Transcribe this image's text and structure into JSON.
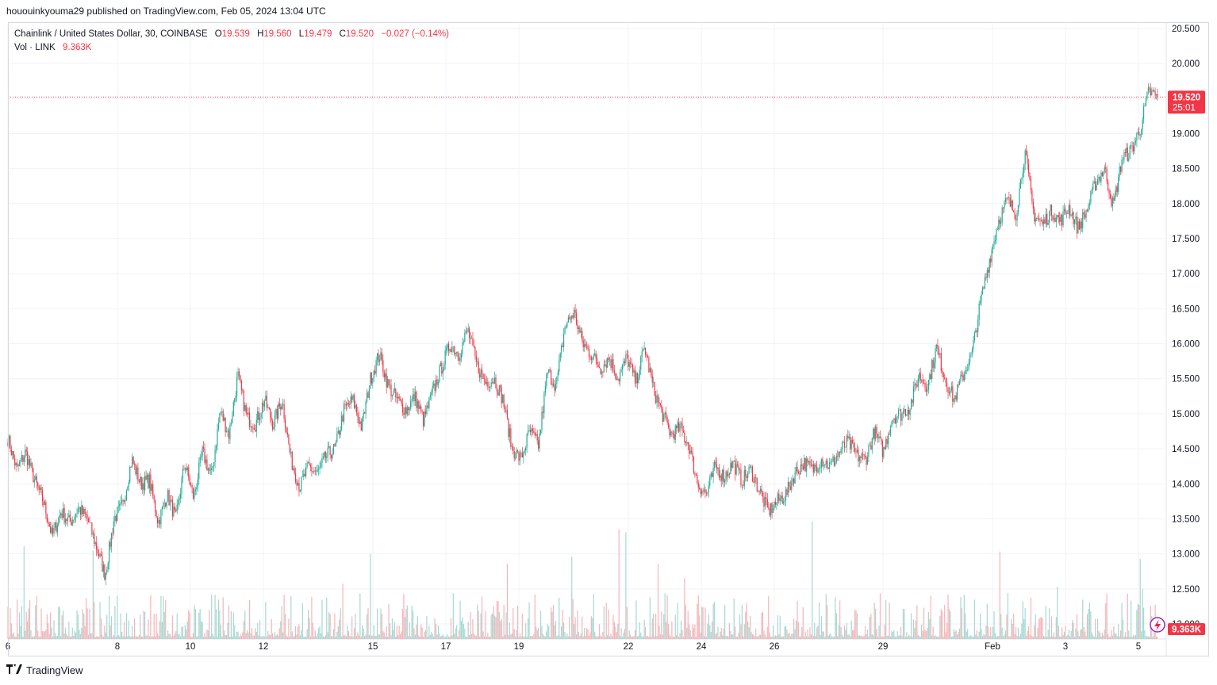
{
  "header": {
    "published": "hououinkyouma29 published on TradingView.com, Feb 05, 2024 13:04 UTC"
  },
  "legend": {
    "symbol": "Chainlink / United States Dollar, 30, COINBASE",
    "open_label": "O",
    "open": "19.539",
    "high_label": "H",
    "high": "19.560",
    "low_label": "L",
    "low": "19.479",
    "close_label": "C",
    "close": "19.520",
    "change": "−0.027 (−0.14%)",
    "vol_label": "Vol · LINK",
    "vol_value": "9.363K"
  },
  "footer": {
    "brand": "TradingView",
    "brand_icon": "tradingview-logo-icon"
  },
  "colors": {
    "up": "#22ab94",
    "down": "#f23645",
    "up_vol": "#a8d8d1",
    "down_vol": "#f7b4b8",
    "grid": "#f0f3fa",
    "axis_text": "#131722"
  },
  "chart_data": {
    "type": "candlestick",
    "interval": "30",
    "exchange": "COINBASE",
    "pair": "LINK/USD",
    "y_axis": {
      "ticks": [
        "20.500",
        "20.000",
        "19.500",
        "19.000",
        "18.500",
        "18.000",
        "17.500",
        "17.000",
        "16.500",
        "16.000",
        "15.500",
        "15.000",
        "14.500",
        "14.000",
        "13.500",
        "13.000",
        "12.500",
        "12.000"
      ],
      "range": [
        11.95,
        20.55
      ]
    },
    "x_axis": {
      "ticks": [
        "6",
        "8",
        "10",
        "12",
        "15",
        "17",
        "19",
        "22",
        "24",
        "26",
        "29",
        "Feb",
        "3",
        "5"
      ]
    },
    "last_price": {
      "value": 19.52,
      "label": "19.520",
      "countdown": "25:01"
    },
    "last_volume": {
      "label": "9.363K"
    },
    "price_path": [
      [
        "6",
        14.65
      ],
      [
        "6",
        14.2
      ],
      [
        "6",
        14.45
      ],
      [
        "6",
        14.05
      ],
      [
        "7",
        13.75
      ],
      [
        "7",
        13.25
      ],
      [
        "7",
        13.6
      ],
      [
        "7",
        13.45
      ],
      [
        "7",
        13.65
      ],
      [
        "7",
        13.5
      ],
      [
        "8",
        13.1
      ],
      [
        "8",
        12.7
      ],
      [
        "8",
        13.5
      ],
      [
        "8",
        13.7
      ],
      [
        "8",
        14.35
      ],
      [
        "8",
        14.0
      ],
      [
        "9",
        14.05
      ],
      [
        "9",
        13.45
      ],
      [
        "9",
        13.85
      ],
      [
        "9",
        13.5
      ],
      [
        "9",
        14.3
      ],
      [
        "10",
        13.8
      ],
      [
        "10",
        14.45
      ],
      [
        "10",
        14.1
      ],
      [
        "10",
        15.05
      ],
      [
        "10",
        14.7
      ],
      [
        "11",
        15.55
      ],
      [
        "11",
        14.95
      ],
      [
        "11",
        14.85
      ],
      [
        "11",
        15.2
      ],
      [
        "12",
        14.85
      ],
      [
        "12",
        15.2
      ],
      [
        "12",
        14.35
      ],
      [
        "12",
        13.95
      ],
      [
        "12",
        14.25
      ],
      [
        "13",
        14.15
      ],
      [
        "13",
        14.4
      ],
      [
        "13",
        14.5
      ],
      [
        "13",
        15.05
      ],
      [
        "14",
        15.2
      ],
      [
        "14",
        14.8
      ],
      [
        "14",
        15.5
      ],
      [
        "14",
        15.85
      ],
      [
        "15",
        15.4
      ],
      [
        "15",
        15.2
      ],
      [
        "15",
        15.05
      ],
      [
        "15",
        15.25
      ],
      [
        "16",
        14.9
      ],
      [
        "16",
        15.3
      ],
      [
        "16",
        15.65
      ],
      [
        "16",
        16.0
      ],
      [
        "17",
        15.85
      ],
      [
        "17",
        16.2
      ],
      [
        "17",
        15.7
      ],
      [
        "17",
        15.45
      ],
      [
        "18",
        15.5
      ],
      [
        "18",
        15.2
      ],
      [
        "18",
        14.5
      ],
      [
        "18",
        14.35
      ],
      [
        "19",
        14.75
      ],
      [
        "19",
        14.55
      ],
      [
        "19",
        15.6
      ],
      [
        "19",
        15.4
      ],
      [
        "19",
        16.25
      ],
      [
        "20",
        16.45
      ],
      [
        "20",
        16.0
      ],
      [
        "20",
        15.85
      ],
      [
        "20",
        15.65
      ],
      [
        "21",
        15.8
      ],
      [
        "21",
        15.5
      ],
      [
        "21",
        15.8
      ],
      [
        "21",
        15.45
      ],
      [
        "22",
        15.95
      ],
      [
        "22",
        15.35
      ],
      [
        "22",
        15.0
      ],
      [
        "22",
        14.7
      ],
      [
        "23",
        14.8
      ],
      [
        "23",
        14.55
      ],
      [
        "23",
        14.0
      ],
      [
        "23",
        13.85
      ],
      [
        "23",
        14.25
      ],
      [
        "24",
        14.1
      ],
      [
        "24",
        14.3
      ],
      [
        "24",
        14.05
      ],
      [
        "24",
        14.2
      ],
      [
        "25",
        13.9
      ],
      [
        "25",
        13.6
      ],
      [
        "25",
        13.75
      ],
      [
        "26",
        13.85
      ],
      [
        "26",
        14.15
      ],
      [
        "26",
        14.3
      ],
      [
        "27",
        14.2
      ],
      [
        "27",
        14.35
      ],
      [
        "27",
        14.25
      ],
      [
        "28",
        14.45
      ],
      [
        "28",
        14.6
      ],
      [
        "28",
        14.4
      ],
      [
        "28",
        14.35
      ],
      [
        "29",
        14.75
      ],
      [
        "29",
        14.45
      ],
      [
        "29",
        14.95
      ],
      [
        "30",
        15.0
      ],
      [
        "30",
        15.1
      ],
      [
        "30",
        15.55
      ],
      [
        "30",
        15.4
      ],
      [
        "31",
        15.95
      ],
      [
        "31",
        15.5
      ],
      [
        "31",
        15.2
      ],
      [
        "31",
        15.55
      ],
      [
        "Feb",
        15.85
      ],
      [
        "Feb",
        16.6
      ],
      [
        "Feb",
        17.2
      ],
      [
        "1",
        17.75
      ],
      [
        "1",
        18.05
      ],
      [
        "2",
        17.85
      ],
      [
        "2",
        18.75
      ],
      [
        "2",
        17.85
      ],
      [
        "2",
        17.7
      ],
      [
        "3",
        17.9
      ],
      [
        "3",
        17.75
      ],
      [
        "3",
        17.95
      ],
      [
        "4",
        17.65
      ],
      [
        "4",
        17.9
      ],
      [
        "4",
        18.3
      ],
      [
        "4",
        18.5
      ],
      [
        "4",
        17.95
      ],
      [
        "5",
        18.65
      ],
      [
        "5",
        18.75
      ],
      [
        "5",
        19.05
      ],
      [
        "5",
        19.6
      ],
      [
        "5",
        19.52
      ]
    ]
  }
}
